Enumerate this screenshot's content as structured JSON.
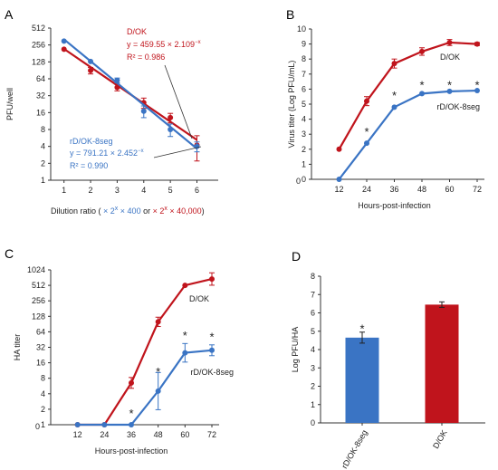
{
  "colors": {
    "red": "#c0141c",
    "blue": "#3a74c4",
    "axis": "#333333"
  },
  "chart_data": [
    {
      "panel": "A",
      "type": "scatter",
      "xlabel": "Dilution ratio",
      "xlabel_parts": {
        "open": "( ",
        "blue_expr": "× 2",
        "blue_sup": "x",
        "blue_tail": " × 400",
        "mid": " or ",
        "red_expr": "× 2",
        "red_sup": "x",
        "red_tail": " × 40,000",
        "close": ")"
      },
      "ylabel": "PFU/well",
      "y_scale": "log2",
      "xlim": [
        0.5,
        6.8
      ],
      "ylim": [
        1,
        512
      ],
      "xticks": [
        "1",
        "2",
        "3",
        "4",
        "5",
        "6"
      ],
      "yticks": [
        "1",
        "2",
        "4",
        "8",
        "16",
        "32",
        "64",
        "128",
        "256",
        "512"
      ],
      "series": [
        {
          "name": "D/OK",
          "x": [
            1,
            2,
            3,
            4,
            5,
            6
          ],
          "y": [
            215,
            90,
            45,
            24,
            13,
            4.2
          ],
          "err": [
            0,
            12,
            6,
            5,
            2.5,
            2
          ],
          "fit": {
            "a": 459.55,
            "b": 2.109
          },
          "equation": "y = 459.55 × 2.109",
          "equation_exp": "−x",
          "r2": "R² = 0.986"
        },
        {
          "name": "rD/OK-8seg",
          "x": [
            1,
            2,
            3,
            4,
            5,
            6
          ],
          "y": [
            300,
            130,
            60,
            17,
            8,
            4
          ],
          "err": [
            0,
            0,
            6,
            4,
            2,
            0.8
          ],
          "fit": {
            "a": 791.21,
            "b": 2.452
          },
          "equation": "y = 791.21 × 2.452",
          "equation_exp": "−x",
          "r2": "R² = 0.990"
        }
      ]
    },
    {
      "panel": "B",
      "type": "line",
      "xlabel": "Hours-post-infection",
      "ylabel": "Virus titer (Log PFU/mL)",
      "xlim": [
        0,
        72
      ],
      "ylim": [
        0,
        10
      ],
      "x_tick_values": [
        12,
        24,
        36,
        48,
        60,
        72
      ],
      "x_origin_label": "0",
      "yticks": [
        "0",
        "1",
        "2",
        "3",
        "4",
        "5",
        "6",
        "7",
        "8",
        "9",
        "10"
      ],
      "series": [
        {
          "name": "D/OK",
          "x": [
            12,
            24,
            36,
            48,
            60,
            72
          ],
          "y": [
            2.0,
            5.2,
            7.7,
            8.5,
            9.1,
            9.0
          ],
          "err": [
            0,
            0.3,
            0.3,
            0.25,
            0.2,
            0.1
          ]
        },
        {
          "name": "rD/OK-8seg",
          "x": [
            12,
            24,
            36,
            48,
            60,
            72
          ],
          "y": [
            0.0,
            2.4,
            4.8,
            5.7,
            5.85,
            5.9
          ],
          "err": [
            0,
            0,
            0,
            0,
            0,
            0
          ]
        }
      ],
      "significance": [
        {
          "x": 24,
          "y": 3.2
        },
        {
          "x": 36,
          "y": 5.6
        },
        {
          "x": 48,
          "y": 6.3
        },
        {
          "x": 60,
          "y": 6.3
        },
        {
          "x": 72,
          "y": 6.3
        }
      ],
      "marker": "*"
    },
    {
      "panel": "C",
      "type": "line",
      "xlabel": "Hours-post-infection",
      "ylabel": "HA titer",
      "y_scale": "log2",
      "xlim": [
        0,
        72
      ],
      "ylim": [
        1,
        1024
      ],
      "x_tick_values": [
        12,
        24,
        36,
        48,
        60,
        72
      ],
      "x_origin_label": "0",
      "yticks": [
        "1",
        "2",
        "4",
        "8",
        "16",
        "32",
        "64",
        "128",
        "256",
        "512",
        "1024"
      ],
      "series": [
        {
          "name": "D/OK",
          "x": [
            12,
            24,
            36,
            48,
            60,
            72
          ],
          "y": [
            1,
            1,
            6.5,
            100,
            512,
            680
          ],
          "err_log2": [
            0,
            0,
            0.35,
            0.3,
            0,
            0.4
          ]
        },
        {
          "name": "rD/OK-8seg",
          "x": [
            12,
            24,
            36,
            48,
            60,
            72
          ],
          "y": [
            1,
            1,
            1,
            4.5,
            25,
            28
          ],
          "err_log2": [
            0,
            0,
            0,
            1.2,
            0.6,
            0.35
          ]
        }
      ],
      "significance": [
        {
          "x": 36,
          "y": 1.7
        },
        {
          "x": 48,
          "y": 11
        },
        {
          "x": 60,
          "y": 55
        },
        {
          "x": 72,
          "y": 52
        }
      ],
      "marker": "*"
    },
    {
      "panel": "D",
      "type": "bar",
      "categories": [
        "rD/OK-8seg",
        "D/OK"
      ],
      "values": [
        4.65,
        6.45
      ],
      "err": [
        0.3,
        0.15
      ],
      "colors": [
        "#3a74c4",
        "#c0141c"
      ],
      "ylabel": "Log PFU/HA",
      "ylim": [
        0,
        8
      ],
      "yticks": [
        "0",
        "1",
        "2",
        "3",
        "4",
        "5",
        "6",
        "7",
        "8"
      ],
      "significance": [
        {
          "category": "rD/OK-8seg",
          "y": 5.15
        }
      ],
      "marker": "*"
    }
  ]
}
